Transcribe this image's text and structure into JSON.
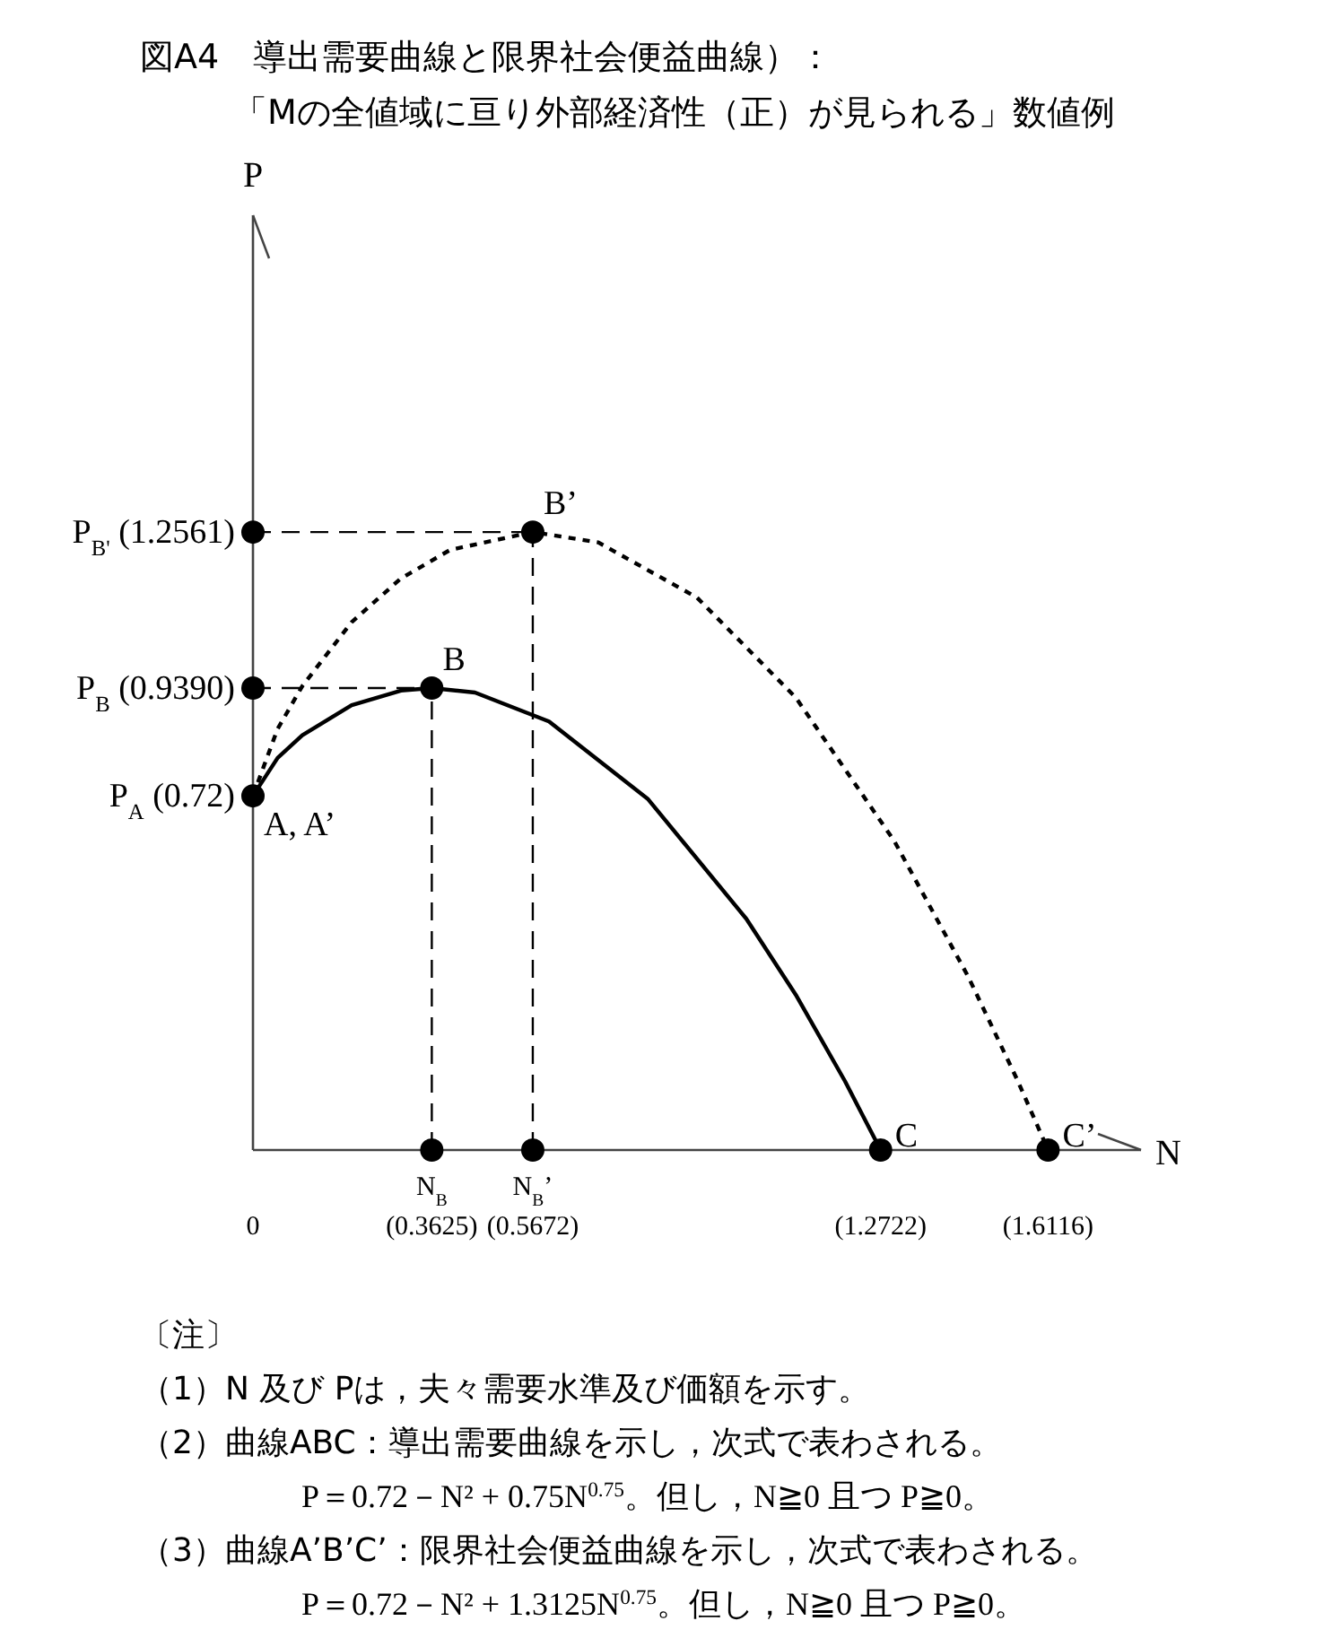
{
  "chart_data": {
    "type": "line",
    "title": "図A4　導出需要曲線と限界社会便益曲線）：",
    "subtitle": "「Mの全値域に亘り外部経済性（正）が見られる」数値例",
    "xlabel": "N",
    "ylabel": "P",
    "xlim": [
      0,
      1.8
    ],
    "ylim": [
      0,
      1.9
    ],
    "xticks": [
      {
        "value": 0,
        "label": "0"
      },
      {
        "value": 0.3625,
        "label": "N$_{B}$\n(0.3625)"
      },
      {
        "value": 0.5672,
        "label": "N$_{B}$’\n(0.5672)"
      },
      {
        "value": 1.2722,
        "label": "(1.2722)"
      },
      {
        "value": 1.6116,
        "label": "(1.6116)"
      }
    ],
    "yticks": [
      {
        "value": 0.72,
        "label": "P$_{A}$ (0.72)"
      },
      {
        "value": 0.939,
        "label": "P$_{B}$ (0.9390)"
      },
      {
        "value": 1.2561,
        "label": "P$_{B'}$ (1.2561)"
      }
    ],
    "grid": false,
    "series": [
      {
        "type": "line",
        "color": "#000000",
        "line_style": "solid",
        "marker": "none",
        "x": [
          0,
          0.05,
          0.1,
          0.2,
          0.3,
          0.3625,
          0.45,
          0.6,
          0.8,
          1.0,
          1.1,
          1.2,
          1.2722
        ],
        "values": [
          0.72,
          0.797,
          0.843,
          0.904,
          0.934,
          0.939,
          0.93,
          0.871,
          0.714,
          0.47,
          0.316,
          0.14,
          0
        ]
      },
      {
        "type": "line",
        "color": "#000000",
        "line_style": "dotted",
        "marker": "none",
        "x": [
          0,
          0.05,
          0.1,
          0.2,
          0.3,
          0.4,
          0.5672,
          0.7,
          0.9,
          1.1,
          1.3,
          1.45,
          1.55,
          1.6116
        ],
        "values": [
          0.72,
          0.856,
          0.943,
          1.073,
          1.162,
          1.22,
          1.2561,
          1.235,
          1.123,
          0.92,
          0.628,
          0.352,
          0.141,
          0
        ]
      },
      {
        "type": "scatter",
        "color": "#000000",
        "marker": "circle",
        "x": [
          0,
          0.3625,
          0.5672,
          1.2722,
          1.6116,
          0,
          0,
          0.3625,
          0.5672
        ],
        "values": [
          0.72,
          0.939,
          1.2561,
          0,
          0,
          0.939,
          1.2561,
          0,
          0
        ]
      }
    ],
    "ref_lines": [
      {
        "axis": "y",
        "value": 0.939,
        "line_style": "dashed",
        "color": "#000000"
      },
      {
        "axis": "y",
        "value": 1.2561,
        "line_style": "dashed",
        "color": "#000000"
      },
      {
        "axis": "x",
        "value": 0.3625,
        "line_style": "dashed",
        "color": "#000000"
      },
      {
        "axis": "x",
        "value": 0.5672,
        "line_style": "dashed",
        "color": "#000000"
      }
    ],
    "annotations": [
      {
        "text": "A, A’",
        "x": 0,
        "y": 0.72
      },
      {
        "text": "B",
        "x": 0.3625,
        "y": 0.939
      },
      {
        "text": "B’",
        "x": 0.5672,
        "y": 1.2561
      },
      {
        "text": "C",
        "x": 1.2722,
        "y": 0
      },
      {
        "text": "C’",
        "x": 1.6116,
        "y": 0
      },
      "〔注〕",
      "（1）N 及び Pは，夫々需要水準及び価額を示す。",
      "（2）曲線ABC：導出需要曲線を示し，次式で表わされる。",
      "P＝0.72－N² + 0.75N$^{0.75}$。但し，N≧0 且つ P≧0。",
      "（3）曲線A’B’C’：限界社会便益曲線を示し，次式で表わされる。",
      "P＝0.72－N² + 1.3125N$^{0.75}$。但し，N≧0 且つ P≧0。"
    ]
  }
}
